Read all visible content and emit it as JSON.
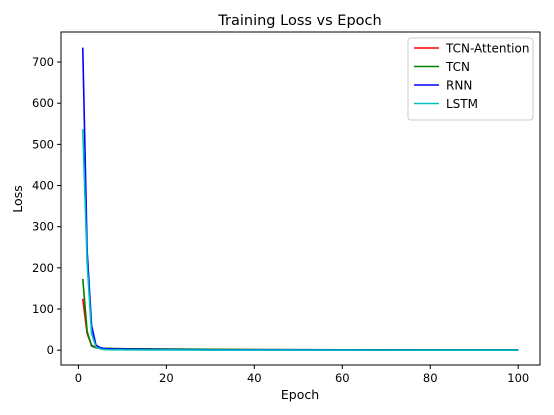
{
  "chart_data": {
    "type": "line",
    "title": "Training Loss vs Epoch",
    "xlabel": "Epoch",
    "ylabel": "Loss",
    "xlim": [
      -3.95,
      104.95
    ],
    "ylim": [
      -36,
      773
    ],
    "xticks": [
      0,
      20,
      40,
      60,
      80,
      100
    ],
    "yticks": [
      0,
      100,
      200,
      300,
      400,
      500,
      600,
      700
    ],
    "grid": false,
    "legend_position": "top-right",
    "series": [
      {
        "name": "TCN-Attention",
        "color": "#ff0000",
        "x": [
          1,
          2,
          3,
          4,
          5,
          6,
          8,
          10,
          15,
          20,
          30,
          40,
          60,
          80,
          100
        ],
        "y": [
          125,
          40,
          12,
          6,
          4.5,
          4,
          3.5,
          3.2,
          2.8,
          2.4,
          1.8,
          1.2,
          0.8,
          0.5,
          0.3
        ]
      },
      {
        "name": "TCN",
        "color": "#008000",
        "x": [
          1,
          2,
          3,
          4,
          5,
          6,
          8,
          10,
          15,
          20,
          30,
          40,
          60,
          80,
          100
        ],
        "y": [
          173,
          45,
          10,
          6,
          5,
          4.5,
          4,
          3.6,
          3,
          2.6,
          2,
          1.4,
          0.9,
          0.6,
          0.4
        ]
      },
      {
        "name": "RNN",
        "color": "#0000ff",
        "x": [
          1,
          2,
          3,
          4,
          5,
          6,
          8,
          10,
          15,
          20,
          30,
          40,
          60,
          80,
          100
        ],
        "y": [
          735,
          240,
          60,
          12,
          6,
          4,
          3,
          2.5,
          2,
          1.5,
          1,
          0.8,
          0.5,
          0.3,
          0.2
        ]
      },
      {
        "name": "LSTM",
        "color": "#00bfbf",
        "x": [
          1,
          2,
          3,
          4,
          5,
          6,
          8,
          10,
          15,
          20,
          30,
          40,
          60,
          80,
          100
        ],
        "y": [
          537,
          210,
          40,
          8,
          3,
          1.5,
          1,
          0.8,
          0.6,
          0.5,
          0.4,
          0.3,
          0.2,
          0.1,
          0.1
        ]
      }
    ]
  }
}
